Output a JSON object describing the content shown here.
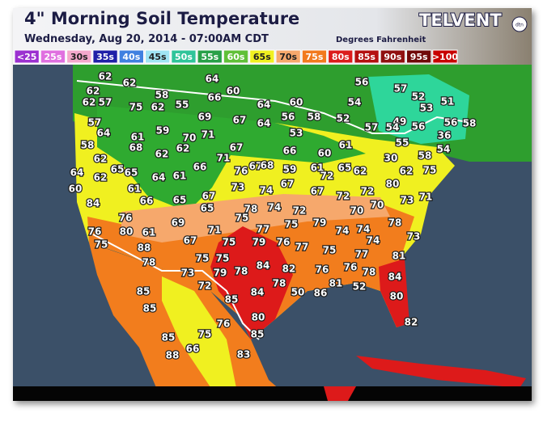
{
  "header": {
    "title": "4\" Morning Soil Temperature",
    "subtitle": "Wednesday, Aug 20, 2014 - 07:00AM CDT",
    "units": "Degrees Fahrenheit",
    "brand": "TELVENT",
    "brand_badge": "dtn"
  },
  "legend": [
    {
      "label": "<25",
      "color": "#9b30d0"
    },
    {
      "label": "25s",
      "color": "#e070e0"
    },
    {
      "label": "30s",
      "color": "#f4a8cc"
    },
    {
      "label": "35s",
      "color": "#2020a8"
    },
    {
      "label": "40s",
      "color": "#4080e0"
    },
    {
      "label": "45s",
      "color": "#a0e4f4"
    },
    {
      "label": "50s",
      "color": "#30c49a"
    },
    {
      "label": "55s",
      "color": "#28a048"
    },
    {
      "label": "60s",
      "color": "#60c038"
    },
    {
      "label": "65s",
      "color": "#f0f020"
    },
    {
      "label": "70s",
      "color": "#f6a86c"
    },
    {
      "label": "75s",
      "color": "#f27a1e"
    },
    {
      "label": "80s",
      "color": "#dc1c1c"
    },
    {
      "label": "85s",
      "color": "#b41010"
    },
    {
      "label": "90s",
      "color": "#901010"
    },
    {
      "label": "95s",
      "color": "#700808"
    },
    {
      "label": ">100",
      "color": "#c80000"
    }
  ],
  "stations": [
    62,
    62,
    64,
    56,
    62,
    58,
    60,
    57,
    52,
    62,
    57,
    75,
    62,
    55,
    66,
    64,
    60,
    54,
    53,
    51,
    69,
    67,
    64,
    56,
    58,
    52,
    49,
    56,
    56,
    58,
    57,
    59,
    70,
    71,
    53,
    57,
    54,
    36,
    64,
    61,
    58,
    68,
    62,
    62,
    67,
    66,
    60,
    61,
    55,
    54,
    62,
    71,
    67,
    68,
    30,
    58,
    64,
    65,
    65,
    64,
    61,
    66,
    76,
    59,
    61,
    72,
    65,
    62,
    62,
    75,
    62,
    60,
    61,
    73,
    74,
    67,
    67,
    72,
    72,
    80,
    73,
    71,
    84,
    66,
    65,
    67,
    65,
    75,
    78,
    74,
    72,
    70,
    70,
    76,
    69,
    75,
    79,
    78,
    76,
    80,
    61,
    71,
    77,
    74,
    74,
    73,
    75,
    88,
    67,
    75,
    79,
    76,
    77,
    74,
    75,
    77,
    78,
    75,
    75,
    84,
    82,
    76,
    76,
    78,
    81,
    73,
    79,
    78,
    78,
    81,
    52,
    84,
    85,
    72,
    84,
    50,
    86,
    85,
    85,
    80,
    80,
    76,
    82,
    75,
    85,
    85,
    66,
    88,
    83
  ]
}
